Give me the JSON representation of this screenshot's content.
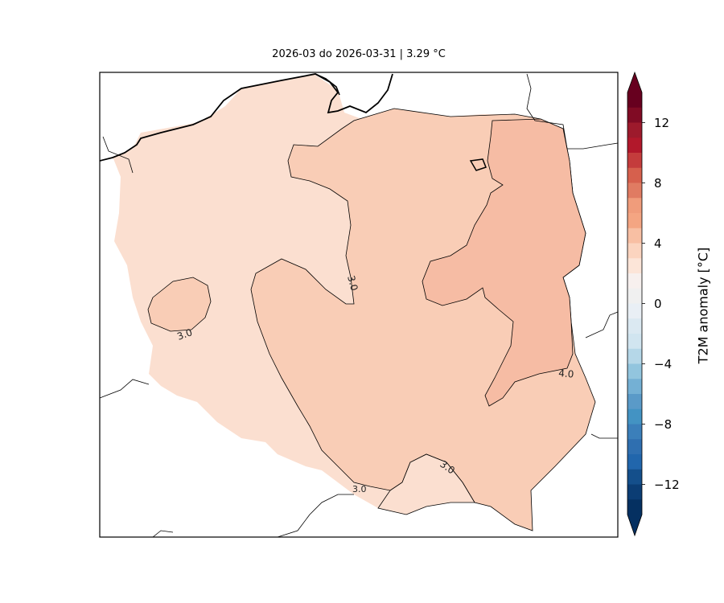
{
  "title": "2026-03 do 2026-03-31 | 3.29 °C",
  "colorbar": {
    "label": "T2M anomaly [°C]",
    "ticks": [
      "12",
      "8",
      "4",
      "0",
      "−4",
      "−8",
      "−12"
    ],
    "tick_values": [
      12,
      8,
      4,
      0,
      -4,
      -8,
      -12
    ],
    "range": [
      -14,
      14
    ],
    "cmap": "RdBu_r",
    "extend": "both"
  },
  "contours": [
    {
      "label": "3.0",
      "value": 3.0
    },
    {
      "label": "3.0",
      "value": 3.0
    },
    {
      "label": "3.0",
      "value": 3.0
    },
    {
      "label": "3.0",
      "value": 3.0
    },
    {
      "label": "4.0",
      "value": 4.0
    }
  ],
  "colors": {
    "fill_below_3": "#fbdfd0",
    "fill_3_to_4": "#f9cdb6",
    "fill_above_4": "#f6bca4",
    "land_background": "#ffffff",
    "borders": "#000000"
  }
}
